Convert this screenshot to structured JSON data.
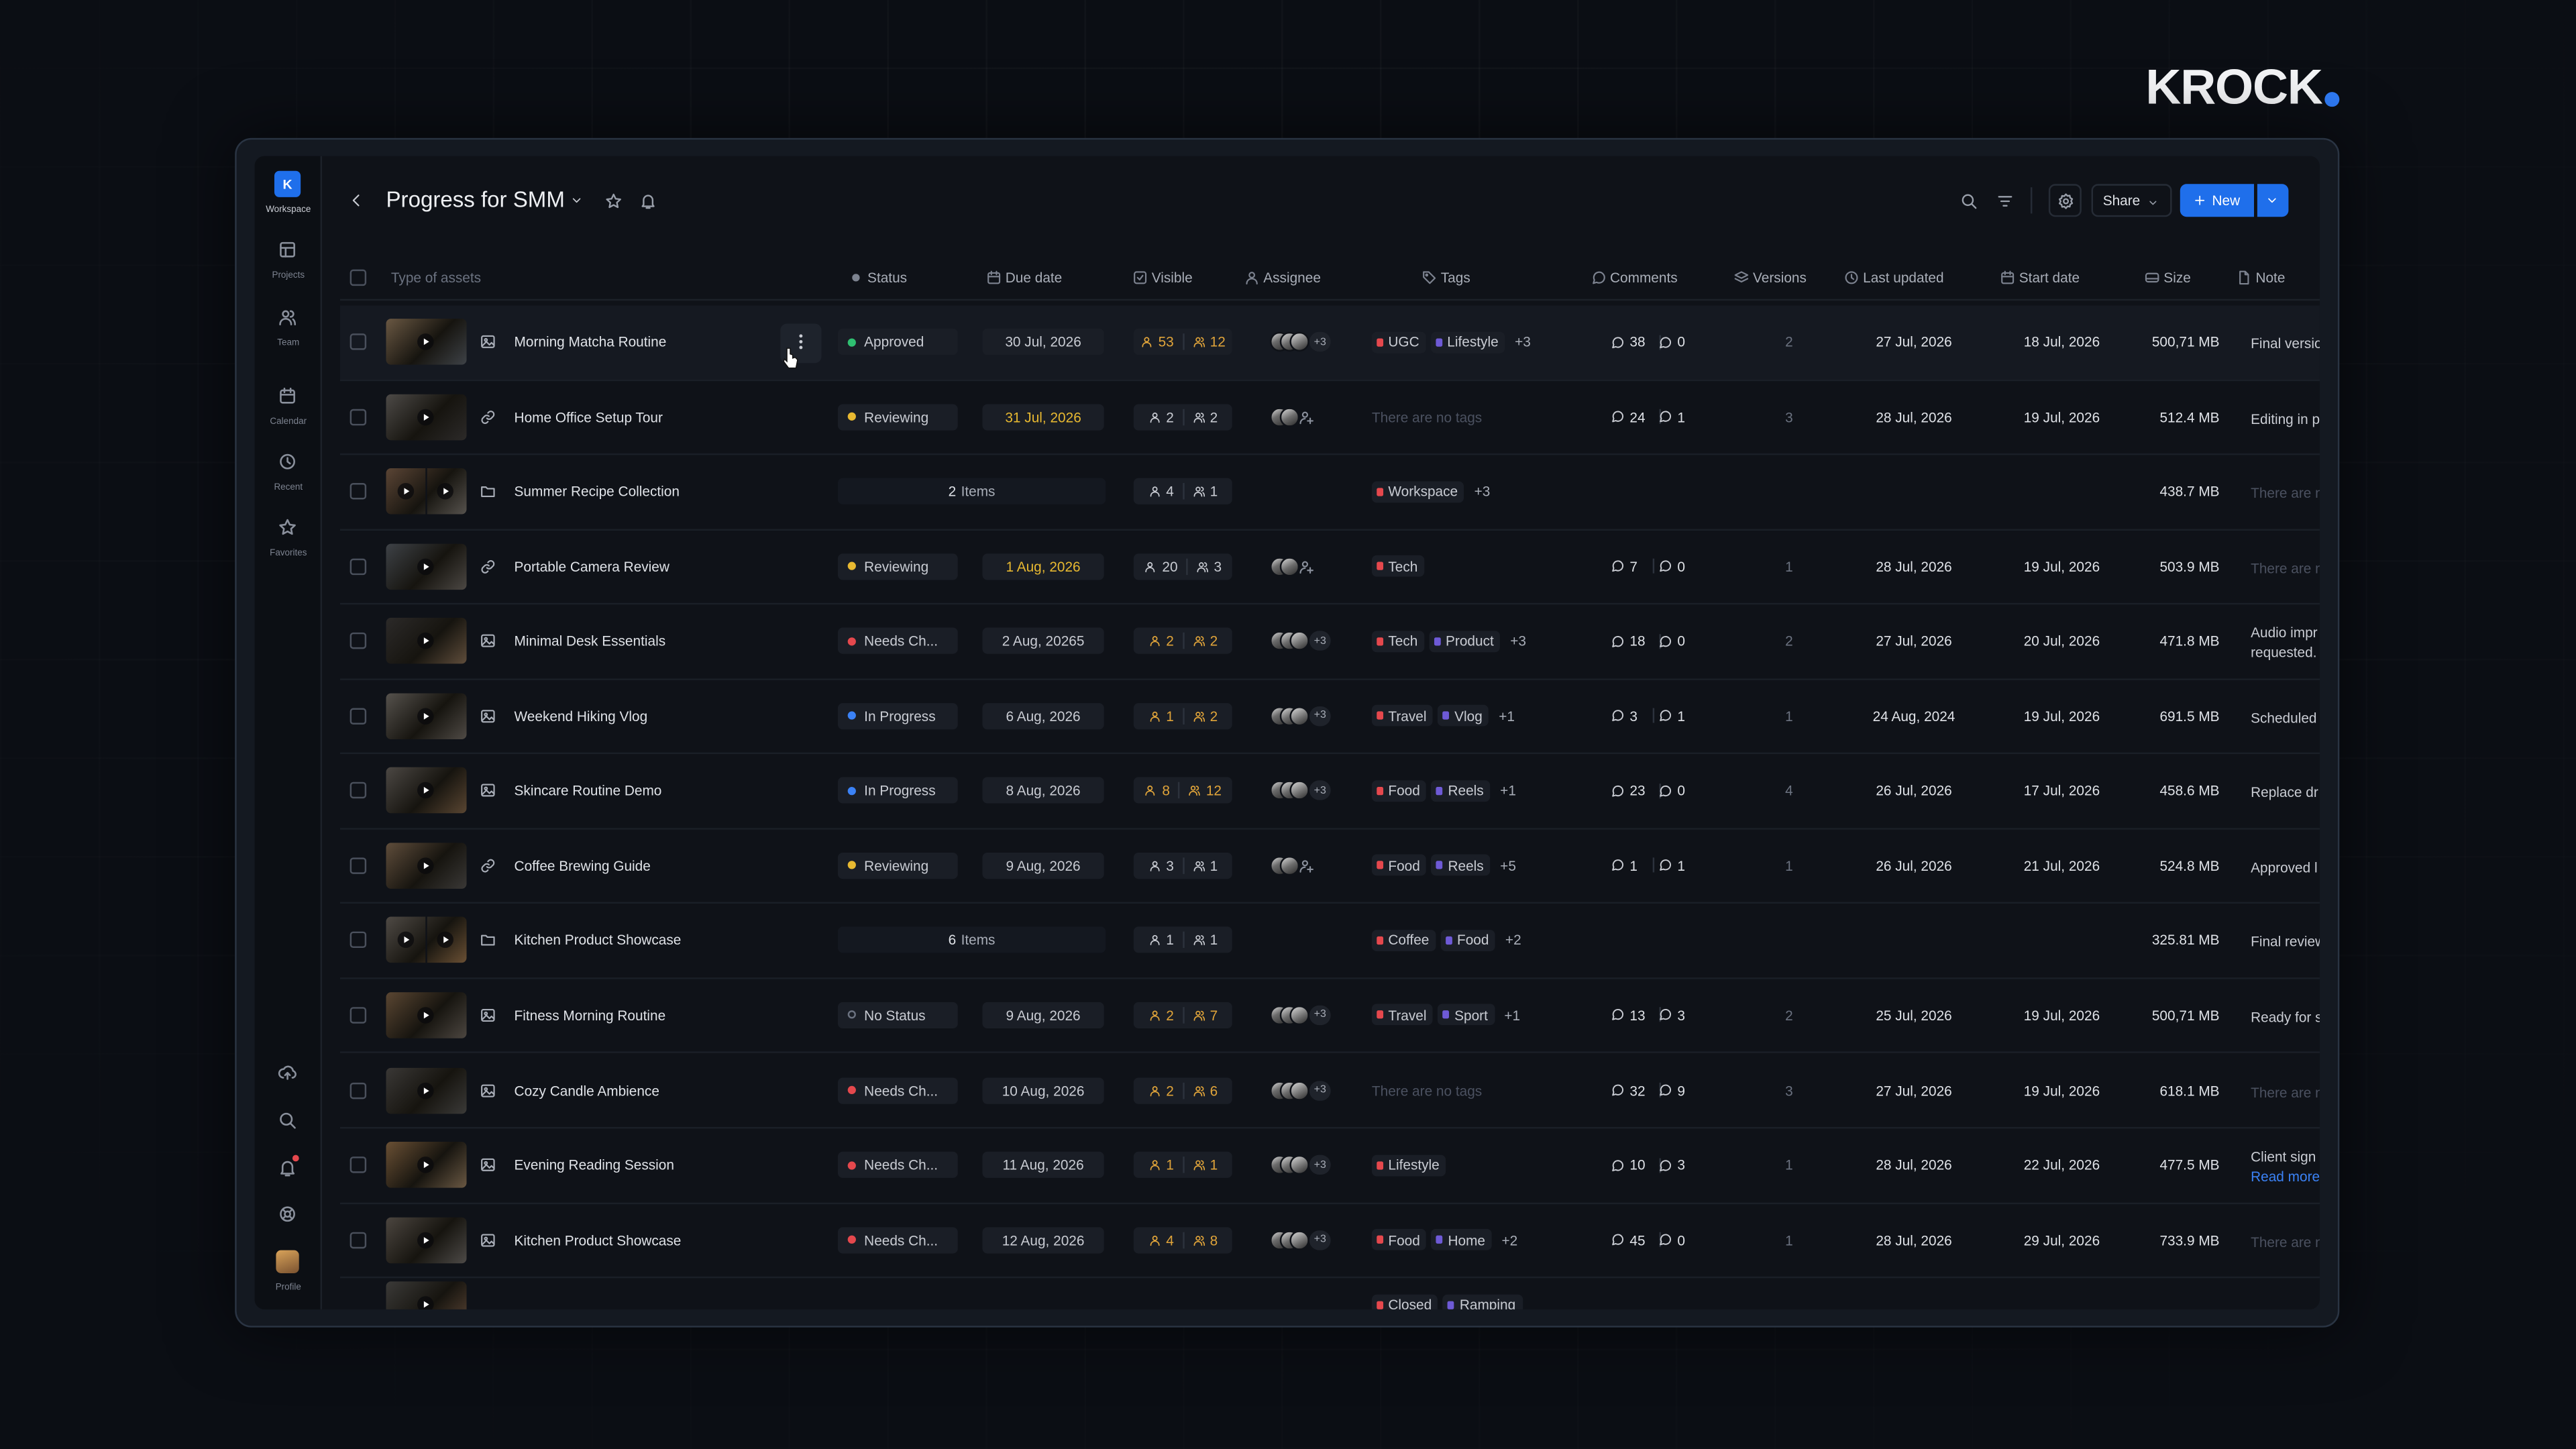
{
  "brand": "KROCK",
  "sidebar": {
    "workspace_initial": "K",
    "workspace": "Workspace",
    "nav": [
      "Projects",
      "Team",
      "Calendar",
      "Recent",
      "Favorites"
    ],
    "profile": "Profile"
  },
  "header": {
    "title": "Progress for SMM",
    "share": "Share",
    "new": "New"
  },
  "table": {
    "columns": [
      "Type of assets",
      "Status",
      "Due date",
      "Visible",
      "Assignee",
      "Tags",
      "Comments",
      "Versions",
      "Last updated",
      "Start date",
      "Size",
      "Note"
    ],
    "rows": [
      {
        "name": "Morning Matcha Routine",
        "status": {
          "label": "Approved",
          "color": "#2fbf71"
        },
        "due": {
          "text": "30 Jul, 2026",
          "color": "#c9ccd3"
        },
        "visible": {
          "viewers": 53,
          "groups": 12,
          "color": "#e0a43a"
        },
        "assignees": {
          "avatars": 3,
          "more": "+3"
        },
        "tags": [
          "UGC",
          "Lifestyle"
        ],
        "tags_more": "+3",
        "comments": [
          38,
          0
        ],
        "versions": 2,
        "last_updated": "27 Jul, 2026",
        "start_date": "18 Jul, 2026",
        "size": "500,71 MB",
        "note": [
          {
            "text": "Final versio",
            "color": "#c9ccd3"
          }
        ]
      },
      {
        "name": "Home Office Setup Tour",
        "status": {
          "label": "Reviewing",
          "color": "#e8b931"
        },
        "due": {
          "text": "31 Jul, 2026",
          "color": "#e8b931"
        },
        "visible": {
          "viewers": 2,
          "groups": 2,
          "color": "#c9ccd3"
        },
        "assignees": {
          "avatars": 2,
          "add": true
        },
        "no_tags": "There are no tags",
        "comments": [
          24,
          1
        ],
        "versions": 3,
        "last_updated": "28 Jul, 2026",
        "start_date": "19 Jul, 2026",
        "size": "512.4 MB",
        "note": [
          {
            "text": "Editing in p",
            "color": "#c9ccd3"
          }
        ]
      },
      {
        "name": "Summer Recipe Collection",
        "items": {
          "count": 2,
          "label": "Items"
        },
        "visible": {
          "viewers": 4,
          "groups": 1,
          "color": "#c9ccd3"
        },
        "tags": [
          "Workspace"
        ],
        "tags_more": "+3",
        "size": "438.7 MB",
        "note": [
          {
            "text": "There are n",
            "color": "#4b5160"
          }
        ]
      },
      {
        "name": "Portable Camera Review",
        "status": {
          "label": "Reviewing",
          "color": "#e8b931"
        },
        "due": {
          "text": "1 Aug, 2026",
          "color": "#e8b931"
        },
        "visible": {
          "viewers": 20,
          "groups": 3,
          "color": "#c9ccd3"
        },
        "assignees": {
          "avatars": 2,
          "add": true
        },
        "tags": [
          "Tech"
        ],
        "comments": [
          7,
          0
        ],
        "versions": 1,
        "last_updated": "28 Jul, 2026",
        "start_date": "19 Jul, 2026",
        "size": "503.9 MB",
        "note": [
          {
            "text": "There are n",
            "color": "#4b5160"
          }
        ]
      },
      {
        "name": "Minimal Desk Essentials",
        "status": {
          "label": "Needs Ch...",
          "color": "#e5484d"
        },
        "due": {
          "text": "2 Aug, 20265",
          "color": "#c9ccd3"
        },
        "visible": {
          "viewers": 2,
          "groups": 2,
          "color": "#e0a43a"
        },
        "assignees": {
          "avatars": 3,
          "more": "+3"
        },
        "tags": [
          "Tech",
          "Product"
        ],
        "tags_more": "+3",
        "comments": [
          18,
          0
        ],
        "versions": 2,
        "last_updated": "27 Jul, 2026",
        "start_date": "20 Jul, 2026",
        "size": "471.8 MB",
        "note": [
          {
            "text": "Audio impr",
            "color": "#c9ccd3"
          },
          {
            "text": "requested.",
            "color": "#c9ccd3"
          }
        ]
      },
      {
        "name": "Weekend Hiking Vlog",
        "status": {
          "label": "In Progress",
          "color": "#3b82f6"
        },
        "due": {
          "text": "6 Aug, 2026",
          "color": "#c9ccd3"
        },
        "visible": {
          "viewers": 1,
          "groups": 2,
          "color": "#e0a43a"
        },
        "assignees": {
          "avatars": 3,
          "more": "+3"
        },
        "tags": [
          "Travel",
          "Vlog"
        ],
        "tags_more": "+1",
        "comments": [
          3,
          1
        ],
        "versions": 1,
        "last_updated": "24 Aug, 2024",
        "start_date": "19 Jul, 2026",
        "size": "691.5 MB",
        "note": [
          {
            "text": "Scheduled",
            "color": "#c9ccd3"
          }
        ]
      },
      {
        "name": "Skincare Routine Demo",
        "status": {
          "label": "In Progress",
          "color": "#3b82f6"
        },
        "due": {
          "text": "8 Aug, 2026",
          "color": "#c9ccd3"
        },
        "visible": {
          "viewers": 8,
          "groups": 12,
          "color": "#e0a43a"
        },
        "assignees": {
          "avatars": 3,
          "more": "+3"
        },
        "tags": [
          "Food",
          "Reels"
        ],
        "tags_more": "+1",
        "comments": [
          23,
          0
        ],
        "versions": 4,
        "last_updated": "26 Jul, 2026",
        "start_date": "17 Jul, 2026",
        "size": "458.6 MB",
        "note": [
          {
            "text": "Replace dr",
            "color": "#c9ccd3"
          }
        ]
      },
      {
        "name": "Coffee Brewing Guide",
        "status": {
          "label": "Reviewing",
          "color": "#e8b931"
        },
        "due": {
          "text": "9 Aug, 2026",
          "color": "#c9ccd3"
        },
        "visible": {
          "viewers": 3,
          "groups": 1,
          "color": "#c9ccd3"
        },
        "assignees": {
          "avatars": 2,
          "add": true
        },
        "tags": [
          "Food",
          "Reels"
        ],
        "tags_more": "+5",
        "comments": [
          1,
          1
        ],
        "versions": 1,
        "last_updated": "26 Jul, 2026",
        "start_date": "21 Jul, 2026",
        "size": "524.8 MB",
        "note": [
          {
            "text": "Approved l",
            "color": "#c9ccd3"
          }
        ]
      },
      {
        "name": "Kitchen Product Showcase",
        "items": {
          "count": 6,
          "label": "Items"
        },
        "visible": {
          "viewers": 1,
          "groups": 1,
          "color": "#c9ccd3"
        },
        "tags": [
          "Coffee",
          "Food"
        ],
        "tags_more": "+2",
        "size": "325.81 MB",
        "note": [
          {
            "text": "Final review",
            "color": "#c9ccd3"
          }
        ]
      },
      {
        "name": "Fitness Morning Routine",
        "status": {
          "label": "No Status",
          "color": "#6b7280",
          "hollow": true
        },
        "due": {
          "text": "9 Aug, 2026",
          "color": "#c9ccd3"
        },
        "visible": {
          "viewers": 2,
          "groups": 7,
          "color": "#e0a43a"
        },
        "assignees": {
          "avatars": 3,
          "more": "+3"
        },
        "tags": [
          "Travel",
          "Sport"
        ],
        "tags_more": "+1",
        "comments": [
          13,
          3
        ],
        "versions": 2,
        "last_updated": "25 Jul, 2026",
        "start_date": "19 Jul, 2026",
        "size": "500,71 MB",
        "note": [
          {
            "text": "Ready for s",
            "color": "#c9ccd3"
          }
        ]
      },
      {
        "name": "Cozy Candle Ambience",
        "status": {
          "label": "Needs Ch...",
          "color": "#e5484d"
        },
        "due": {
          "text": "10 Aug, 2026",
          "color": "#c9ccd3"
        },
        "visible": {
          "viewers": 2,
          "groups": 6,
          "color": "#e0a43a"
        },
        "assignees": {
          "avatars": 3,
          "more": "+3"
        },
        "no_tags": "There are no tags",
        "comments": [
          32,
          9
        ],
        "versions": 3,
        "last_updated": "27 Jul, 2026",
        "start_date": "19 Jul, 2026",
        "size": "618.1 MB",
        "note": [
          {
            "text": "There are n",
            "color": "#4b5160"
          }
        ]
      },
      {
        "name": "Evening Reading Session",
        "status": {
          "label": "Needs Ch...",
          "color": "#e5484d"
        },
        "due": {
          "text": "11 Aug, 2026",
          "color": "#c9ccd3"
        },
        "visible": {
          "viewers": 1,
          "groups": 1,
          "color": "#e0a43a"
        },
        "assignees": {
          "avatars": 3,
          "more": "+3"
        },
        "tags": [
          "Lifestyle"
        ],
        "comments": [
          10,
          3
        ],
        "versions": 1,
        "last_updated": "28 Jul, 2026",
        "start_date": "22 Jul, 2026",
        "size": "477.5 MB",
        "note": [
          {
            "text": "Client sign",
            "color": "#c9ccd3"
          },
          {
            "text": "Read more",
            "color": "#3b82f6"
          }
        ]
      },
      {
        "name": "Kitchen Product Showcase",
        "status": {
          "label": "Needs Ch...",
          "color": "#e5484d"
        },
        "due": {
          "text": "12 Aug, 2026",
          "color": "#c9ccd3"
        },
        "visible": {
          "viewers": 4,
          "groups": 8,
          "color": "#e0a43a"
        },
        "assignees": {
          "avatars": 3,
          "more": "+3"
        },
        "tags": [
          "Food",
          "Home"
        ],
        "tags_more": "+2",
        "comments": [
          45,
          0
        ],
        "versions": 1,
        "last_updated": "28 Jul, 2026",
        "start_date": "29 Jul, 2026",
        "size": "733.9 MB",
        "note": [
          {
            "text": "There are n",
            "color": "#4b5160"
          }
        ]
      },
      {
        "tags": [
          "Closed",
          "Ramping"
        ]
      }
    ]
  }
}
